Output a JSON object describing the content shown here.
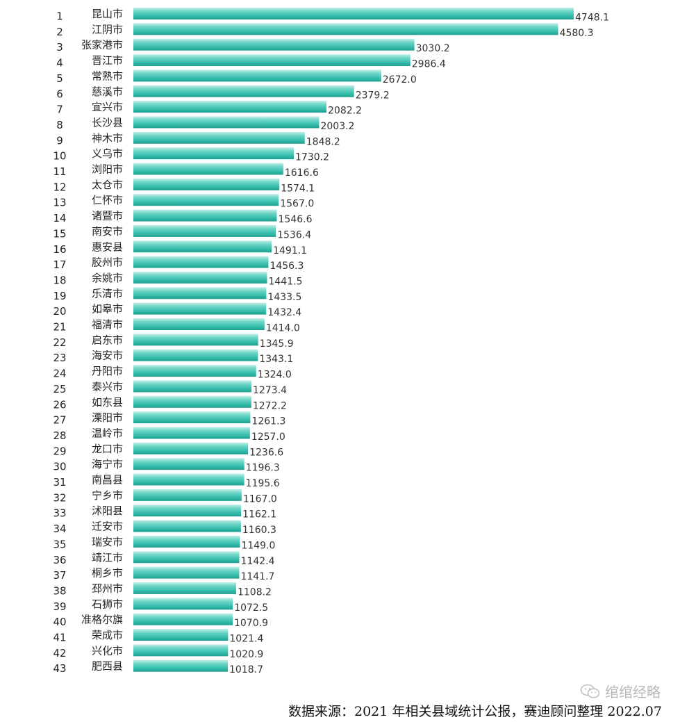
{
  "chart_data": {
    "type": "bar",
    "orientation": "horizontal",
    "title": "",
    "xlabel": "",
    "ylabel": "",
    "xlim": [
      0,
      4748.1
    ],
    "grid": false,
    "legend": "none",
    "bar_color": "#3cc3b2",
    "ranks": [
      "1",
      "2",
      "3",
      "4",
      "5",
      "6",
      "7",
      "8",
      "9",
      "10",
      "11",
      "12",
      "13",
      "14",
      "15",
      "16",
      "17",
      "18",
      "19",
      "20",
      "21",
      "22",
      "23",
      "24",
      "25",
      "26",
      "27",
      "28",
      "29",
      "30",
      "31",
      "32",
      "33",
      "34",
      "35",
      "36",
      "37",
      "38",
      "39",
      "40",
      "41",
      "42",
      "43"
    ],
    "categories": [
      "昆山市",
      "江阴市",
      "张家港市",
      "晋江市",
      "常熟市",
      "慈溪市",
      "宜兴市",
      "长沙县",
      "神木市",
      "义乌市",
      "浏阳市",
      "太仓市",
      "仁怀市",
      "诸暨市",
      "南安市",
      "惠安县",
      "胶州市",
      "余姚市",
      "乐清市",
      "如皋市",
      "福清市",
      "启东市",
      "海安市",
      "丹阳市",
      "泰兴市",
      "如东县",
      "溧阳市",
      "温岭市",
      "龙口市",
      "海宁市",
      "南昌县",
      "宁乡市",
      "沭阳县",
      "迁安市",
      "瑞安市",
      "靖江市",
      "桐乡市",
      "邳州市",
      "石狮市",
      "准格尔旗",
      "荣成市",
      "兴化市",
      "肥西县"
    ],
    "values": [
      4748.1,
      4580.3,
      3030.2,
      2986.4,
      2672.0,
      2379.2,
      2082.2,
      2003.2,
      1848.2,
      1730.2,
      1616.6,
      1574.1,
      1567.0,
      1546.6,
      1536.4,
      1491.1,
      1456.3,
      1441.5,
      1433.5,
      1432.4,
      1414.0,
      1345.9,
      1343.1,
      1324.0,
      1273.4,
      1272.2,
      1261.3,
      1257.0,
      1236.6,
      1196.3,
      1195.6,
      1167.0,
      1162.1,
      1160.3,
      1149.0,
      1142.4,
      1141.7,
      1108.2,
      1072.5,
      1070.9,
      1021.4,
      1020.9,
      1018.7
    ],
    "value_labels": [
      "4748.1",
      "4580.3",
      "3030.2",
      "2986.4",
      "2672.0",
      "2379.2",
      "2082.2",
      "2003.2",
      "1848.2",
      "1730.2",
      "1616.6",
      "1574.1",
      "1567.0",
      "1546.6",
      "1536.4",
      "1491.1",
      "1456.3",
      "1441.5",
      "1433.5",
      "1432.4",
      "1414.0",
      "1345.9",
      "1343.1",
      "1324.0",
      "1273.4",
      "1272.2",
      "1261.3",
      "1257.0",
      "1236.6",
      "1196.3",
      "1195.6",
      "1167.0",
      "1162.1",
      "1160.3",
      "1149.0",
      "1142.4",
      "1141.7",
      "1108.2",
      "1072.5",
      "1070.9",
      "1021.4",
      "1020.9",
      "1018.7"
    ]
  },
  "footer": {
    "source": "数据来源：2021 年相关县域统计公报，赛迪顾问整理   2022.07",
    "watermark_text": "绾绾经略",
    "watermark_icon": "wechat-icon"
  }
}
